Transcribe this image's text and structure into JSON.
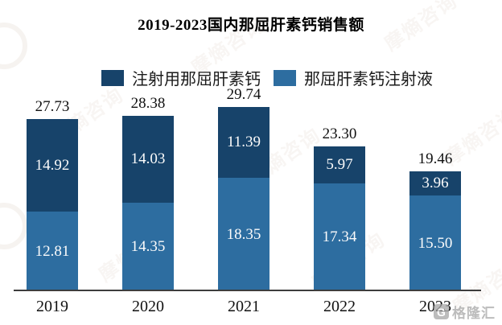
{
  "title": "2019-2023国内那屈肝素钙销售额",
  "legend": [
    {
      "label": "注射用那屈肝素钙",
      "color": "#17436a"
    },
    {
      "label": "那屈肝素钙注射液",
      "color": "#2d6da0"
    }
  ],
  "chart_data": {
    "type": "bar",
    "stacked": true,
    "title": "2019-2023国内那屈肝素钙销售额",
    "categories": [
      "2019",
      "2020",
      "2021",
      "2022",
      "2023"
    ],
    "series": [
      {
        "name": "注射用那屈肝素钙",
        "color": "#17436a",
        "position": "top",
        "values": [
          14.92,
          14.03,
          11.39,
          5.97,
          3.96
        ]
      },
      {
        "name": "那屈肝素钙注射液",
        "color": "#2d6da0",
        "position": "bottom",
        "values": [
          12.81,
          14.35,
          18.35,
          17.34,
          15.5
        ]
      }
    ],
    "totals": [
      27.73,
      28.38,
      29.74,
      23.3,
      19.46
    ],
    "value_label_precision": 2,
    "xlabel": "",
    "ylabel": "",
    "ylim": [
      0,
      30
    ],
    "grid": false,
    "legend_position": "top",
    "x_axis_line": true,
    "y_axis_visible": false
  },
  "watermarks": {
    "diagonal_text": "摩熵咨询"
  },
  "footer_logo": {
    "icon": "G",
    "text": "格隆汇"
  }
}
